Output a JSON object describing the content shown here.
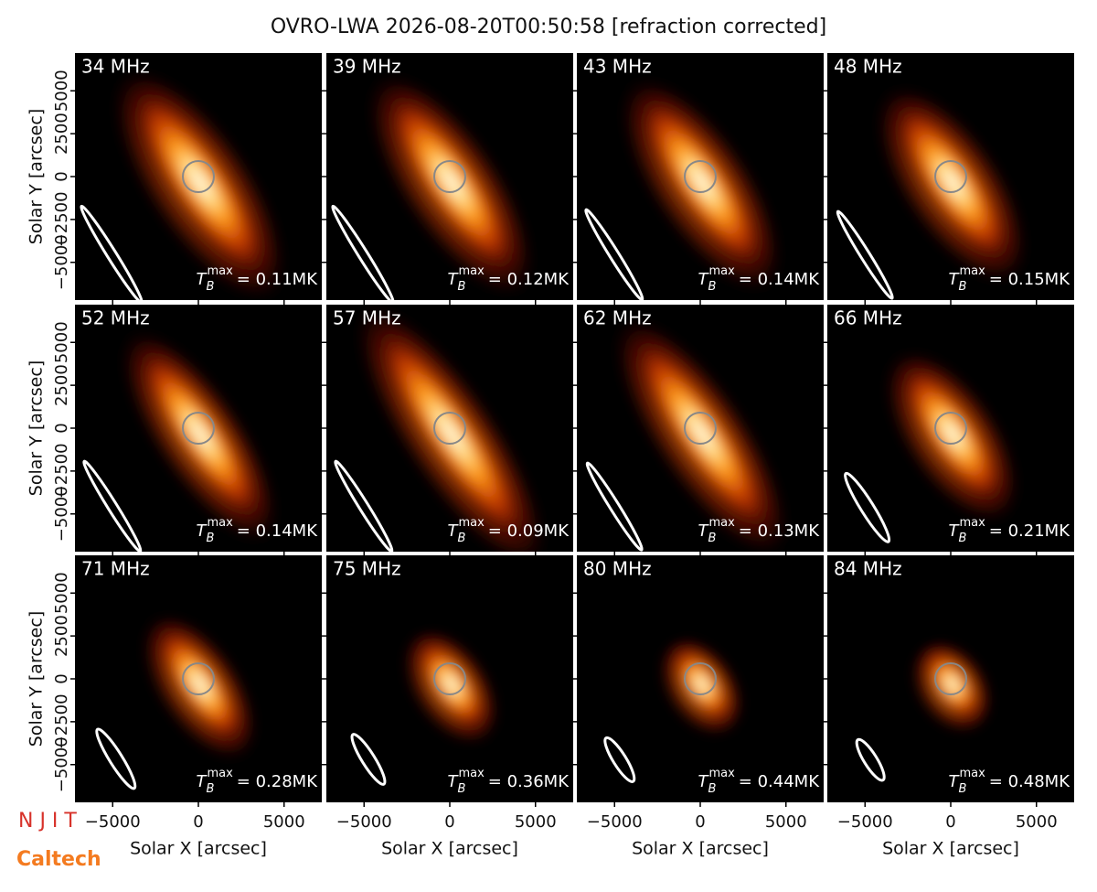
{
  "chart_data": {
    "type": "image-grid",
    "title": "OVRO-LWA 2026-08-20T00:50:58 [refraction corrected]",
    "x_label": "Solar X [arcsec]",
    "y_label": "Solar Y [arcsec]",
    "xlim": [
      -7200,
      7200
    ],
    "ylim": [
      -7200,
      7200
    ],
    "xticks": [
      {
        "value": -5000,
        "label": "−5000"
      },
      0,
      5000
    ],
    "yticks": [
      {
        "value": -5000,
        "label": "−5000"
      },
      {
        "value": -2500,
        "label": "−2500"
      },
      0,
      2500,
      5000
    ],
    "tmax_symbol": "T",
    "tmax_sub": "B",
    "tmax_sup": "max",
    "panels": [
      {
        "frequency": "34 MHz",
        "tmax": "= 0.11MK"
      },
      {
        "frequency": "39 MHz",
        "tmax": "= 0.12MK"
      },
      {
        "frequency": "43 MHz",
        "tmax": "= 0.14MK"
      },
      {
        "frequency": "48 MHz",
        "tmax": "= 0.15MK"
      },
      {
        "frequency": "52 MHz",
        "tmax": "= 0.14MK"
      },
      {
        "frequency": "57 MHz",
        "tmax": "= 0.09MK"
      },
      {
        "frequency": "62 MHz",
        "tmax": "= 0.13MK"
      },
      {
        "frequency": "66 MHz",
        "tmax": "= 0.21MK"
      },
      {
        "frequency": "71 MHz",
        "tmax": "= 0.28MK"
      },
      {
        "frequency": "75 MHz",
        "tmax": "= 0.36MK"
      },
      {
        "frequency": "80 MHz",
        "tmax": "= 0.44MK"
      },
      {
        "frequency": "84 MHz",
        "tmax": "= 0.48MK"
      }
    ],
    "logos": [
      "N J I T",
      "Caltech"
    ]
  }
}
